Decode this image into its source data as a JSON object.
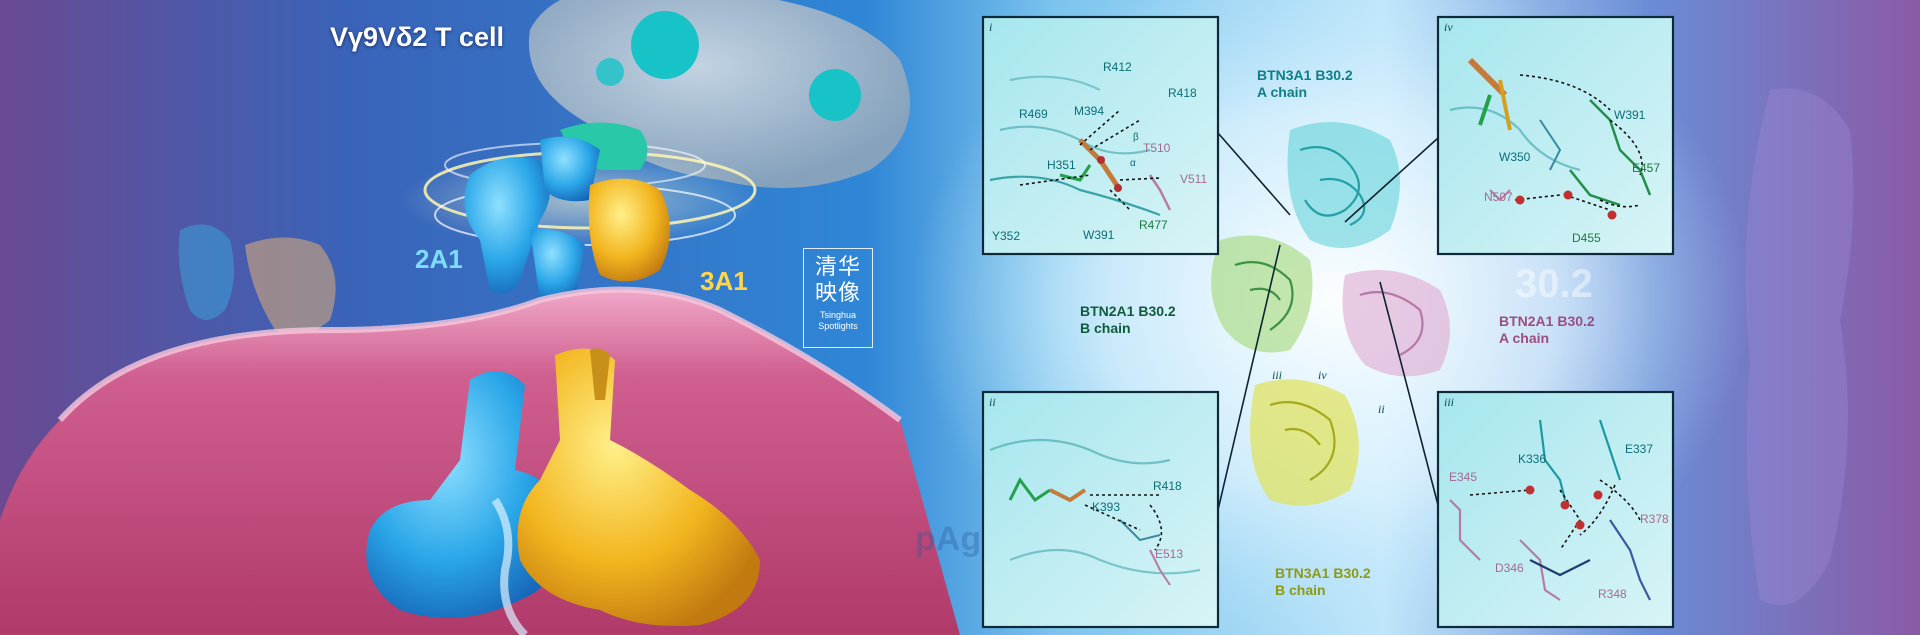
{
  "title": "Vγ9Vδ2 T cell",
  "labels": {
    "a2a1": "2A1",
    "a3a1": "3A1"
  },
  "logo": {
    "chinese_line1": "清华",
    "chinese_line2": "映像",
    "english_line1": "Tsinghua",
    "english_line2": "Spotlights"
  },
  "chains": {
    "btn3a1_a": {
      "line1": "BTN3A1 B30.2",
      "line2": "A chain"
    },
    "btn2a1_b": {
      "line1": "BTN2A1 B30.2",
      "line2": "B chain"
    },
    "btn2a1_a": {
      "line1": "BTN2A1 B30.2",
      "line2": "A chain"
    },
    "btn3a1_b": {
      "line1": "BTN3A1 B30.2",
      "line2": "B chain"
    }
  },
  "ghost_text": {
    "b302": "30.2",
    "pag": "pAg"
  },
  "center_tags": {
    "iii": "iii",
    "iv": "iv",
    "ii": "ii"
  },
  "panels": {
    "i": {
      "tag": "i",
      "residues": [
        "R412",
        "R418",
        "R469",
        "M394",
        "T510",
        "H351",
        "V511",
        "Y352",
        "W391",
        "R477"
      ],
      "greek": [
        "β",
        "α"
      ]
    },
    "iv": {
      "tag": "iv",
      "residues": [
        "W391",
        "W350",
        "E457",
        "N507",
        "D455"
      ]
    },
    "ii": {
      "tag": "ii",
      "residues": [
        "R418",
        "K393",
        "E513"
      ]
    },
    "iii": {
      "tag": "iii",
      "residues": [
        "K336",
        "E337",
        "E345",
        "R378",
        "D346",
        "R348"
      ]
    }
  },
  "colors": {
    "teal": "#0e7f86",
    "green": "#1c7a3c",
    "pink": "#9a4f83",
    "olive": "#8d9a12",
    "blue_protein": "#2aa6e8",
    "yellow_protein": "#f2b51e"
  }
}
